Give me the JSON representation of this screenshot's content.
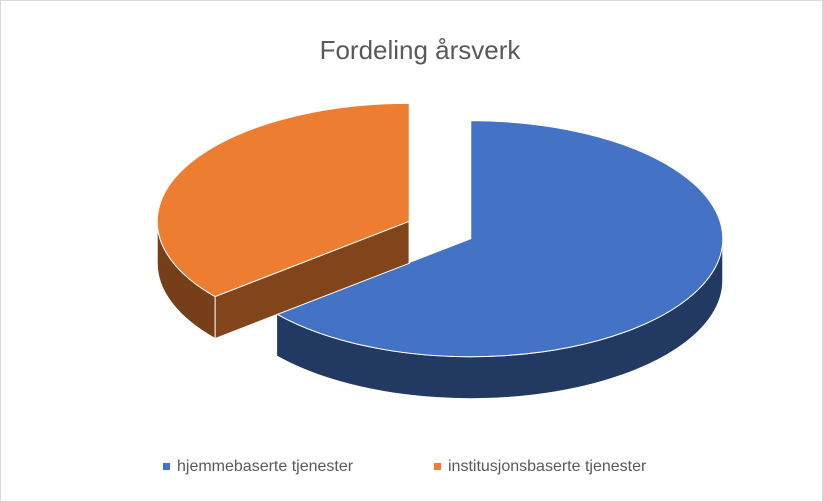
{
  "chart_data": {
    "type": "pie3d",
    "title": "Fordeling årsverk",
    "categories": [
      "hjemmebaserte tjenester",
      "institusjonsbaserte tjenester"
    ],
    "values": [
      64,
      36
    ],
    "colors": [
      "#4472c4",
      "#ed7d31"
    ],
    "legend": "bottom"
  }
}
